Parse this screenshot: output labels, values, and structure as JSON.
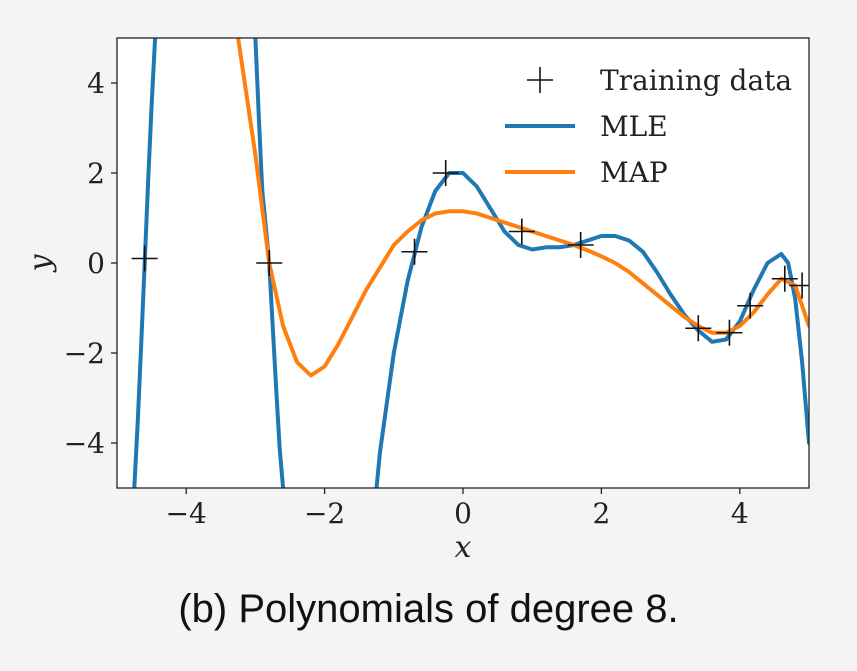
{
  "caption": "(b) Polynomials of degree 8.",
  "chart_data": {
    "type": "line",
    "title": "",
    "xlabel": "x",
    "ylabel": "y",
    "xlim": [
      -5,
      5
    ],
    "ylim": [
      -5,
      5
    ],
    "xticks": [
      -4,
      -2,
      0,
      2,
      4
    ],
    "yticks": [
      -4,
      -2,
      0,
      2,
      4
    ],
    "tick_labels_x": [
      "−4",
      "−2",
      "0",
      "2",
      "4"
    ],
    "tick_labels_y": [
      "−4",
      "−2",
      "0",
      "2",
      "4"
    ],
    "grid": false,
    "legend_position": "top-right",
    "colors": {
      "mle": "#1f77b4",
      "map": "#ff7f0e",
      "data": "#111111"
    },
    "training_data": {
      "name": "Training data",
      "points": [
        [
          -4.6,
          0.1
        ],
        [
          -2.8,
          0.0
        ],
        [
          -0.7,
          0.25
        ],
        [
          -0.25,
          2.0
        ],
        [
          0.85,
          0.7
        ],
        [
          1.7,
          0.4
        ],
        [
          3.4,
          -1.45
        ],
        [
          3.85,
          -1.55
        ],
        [
          4.15,
          -0.95
        ],
        [
          4.65,
          -0.35
        ],
        [
          4.9,
          -0.5
        ]
      ]
    },
    "series": [
      {
        "name": "MLE",
        "color": "#1f77b4",
        "x": [
          -4.75,
          -4.7,
          -4.65,
          -4.6,
          -4.55,
          -4.5,
          -4.45,
          -3.0,
          -2.95,
          -2.9,
          -2.85,
          -2.8,
          -2.75,
          -2.7,
          -2.65,
          -2.6,
          -1.25,
          -1.2,
          -1.0,
          -0.8,
          -0.6,
          -0.4,
          -0.2,
          0.0,
          0.2,
          0.4,
          0.6,
          0.8,
          1.0,
          1.2,
          1.4,
          1.6,
          1.8,
          2.0,
          2.2,
          2.4,
          2.6,
          2.8,
          3.0,
          3.2,
          3.4,
          3.6,
          3.8,
          4.0,
          4.2,
          4.4,
          4.6,
          4.7,
          4.8,
          4.9,
          5.0
        ],
        "y": [
          -5.0,
          -3.5,
          -1.8,
          0.0,
          1.8,
          3.5,
          5.0,
          5.0,
          3.2,
          1.6,
          0.8,
          0.0,
          -1.4,
          -2.8,
          -4.1,
          -5.0,
          -5.0,
          -4.2,
          -2.0,
          -0.4,
          0.8,
          1.6,
          2.0,
          2.0,
          1.7,
          1.2,
          0.7,
          0.4,
          0.3,
          0.35,
          0.35,
          0.4,
          0.5,
          0.6,
          0.6,
          0.5,
          0.25,
          -0.2,
          -0.7,
          -1.15,
          -1.5,
          -1.75,
          -1.7,
          -1.3,
          -0.6,
          0.0,
          0.2,
          0.0,
          -0.8,
          -2.2,
          -4.0
        ]
      },
      {
        "name": "MAP",
        "color": "#ff7f0e",
        "x": [
          -3.25,
          -3.0,
          -2.8,
          -2.6,
          -2.4,
          -2.2,
          -2.0,
          -1.8,
          -1.6,
          -1.4,
          -1.2,
          -1.0,
          -0.8,
          -0.6,
          -0.4,
          -0.2,
          0.0,
          0.2,
          0.4,
          0.6,
          0.8,
          1.0,
          1.2,
          1.4,
          1.6,
          1.8,
          2.0,
          2.2,
          2.4,
          2.6,
          2.8,
          3.0,
          3.2,
          3.4,
          3.6,
          3.8,
          4.0,
          4.2,
          4.4,
          4.6,
          4.8,
          5.0
        ],
        "y": [
          5.0,
          2.4,
          0.0,
          -1.4,
          -2.2,
          -2.5,
          -2.3,
          -1.8,
          -1.2,
          -0.6,
          -0.1,
          0.4,
          0.7,
          0.95,
          1.1,
          1.15,
          1.15,
          1.1,
          1.0,
          0.9,
          0.8,
          0.7,
          0.6,
          0.5,
          0.4,
          0.28,
          0.15,
          0.0,
          -0.2,
          -0.45,
          -0.7,
          -0.95,
          -1.2,
          -1.4,
          -1.55,
          -1.55,
          -1.4,
          -1.1,
          -0.7,
          -0.35,
          -0.5,
          -1.4
        ]
      }
    ]
  }
}
